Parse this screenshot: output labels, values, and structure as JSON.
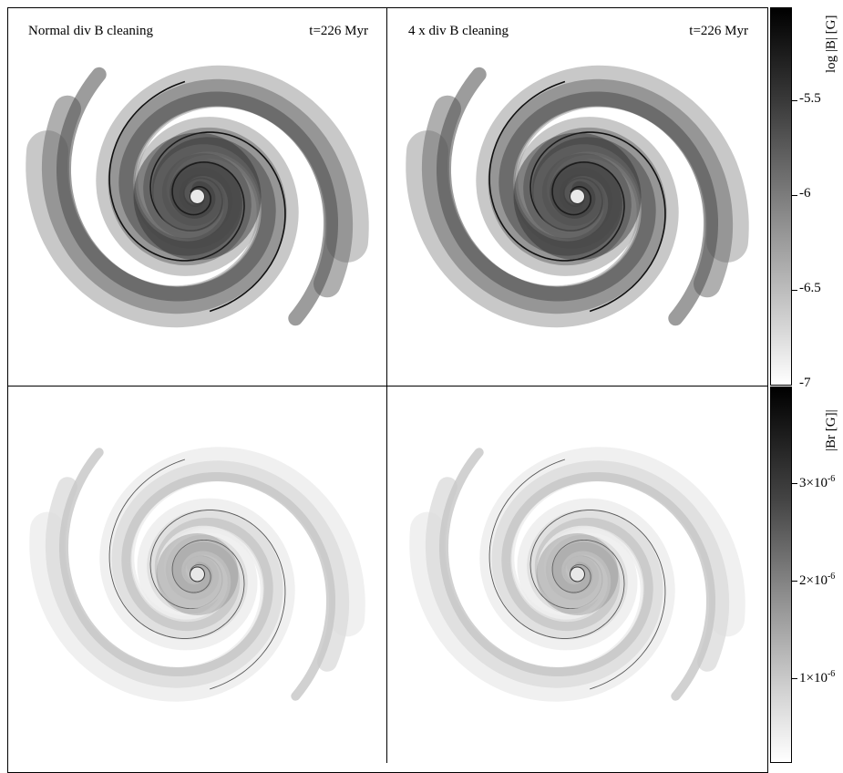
{
  "panels": {
    "top_left": {
      "label_left": "Normal div B cleaning",
      "label_right": "t=226 Myr"
    },
    "top_right": {
      "label_left": "4 x div B cleaning",
      "label_right": "t=226 Myr"
    }
  },
  "colorbar_top": {
    "title": "log |B| [G]",
    "ticks": [
      "-5.5",
      "-6",
      "-6.5",
      "-7"
    ]
  },
  "colorbar_bottom": {
    "title": "|Br [G]|",
    "ticks": [
      {
        "mantissa": "3×10",
        "exp": "-6"
      },
      {
        "mantissa": "2×10",
        "exp": "-6"
      },
      {
        "mantissa": "1×10",
        "exp": "-6"
      }
    ]
  },
  "colors": {
    "colormap_low": "#ffffff",
    "colormap_high": "#000000"
  }
}
